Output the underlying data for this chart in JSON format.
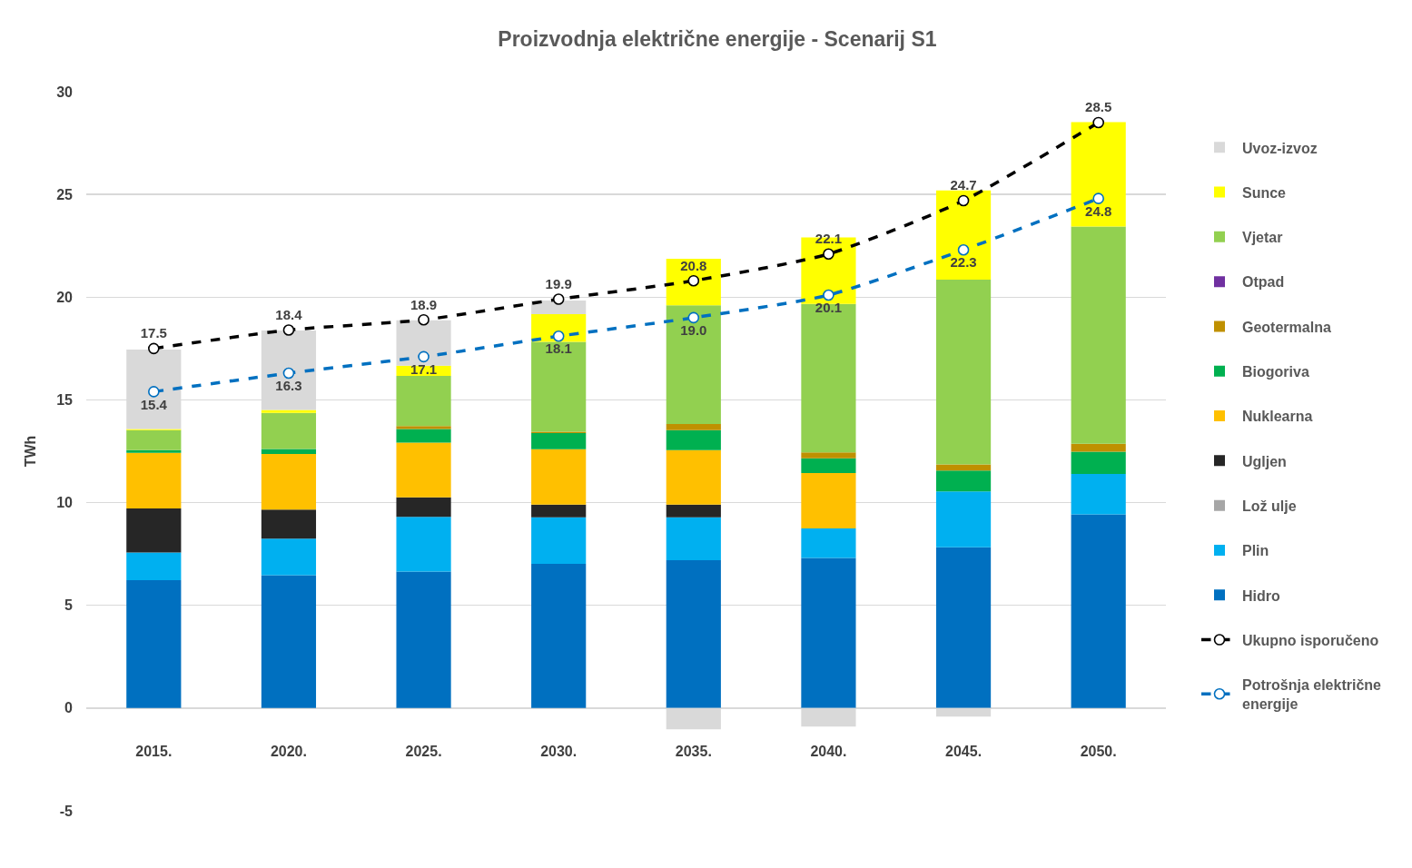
{
  "chart_data": {
    "type": "bar",
    "title": "Proizvodnja električne energije - Scenarij S1",
    "ylabel": "TWh",
    "categories": [
      "2015.",
      "2020.",
      "2025.",
      "2030.",
      "2035.",
      "2040.",
      "2045.",
      "2050."
    ],
    "stacked": true,
    "ylim": [
      -5,
      30
    ],
    "yticks": [
      -5,
      0,
      5,
      10,
      15,
      20,
      25,
      30
    ],
    "grid": "y",
    "legend": "right",
    "series": [
      {
        "name": "Hidro",
        "color": "#0070c0",
        "values": [
          6.22,
          6.47,
          6.64,
          7.02,
          7.2,
          7.31,
          7.83,
          9.43
        ]
      },
      {
        "name": "Plin",
        "color": "#00b0f0",
        "values": [
          1.35,
          1.78,
          2.67,
          2.27,
          2.09,
          1.43,
          2.71,
          1.97
        ]
      },
      {
        "name": "Lož ulje",
        "color": "#a6a6a6",
        "values": [
          0,
          0,
          0,
          0,
          0,
          0,
          0,
          0
        ]
      },
      {
        "name": "Ugljen",
        "color": "#262626",
        "values": [
          2.15,
          1.41,
          0.95,
          0.61,
          0.61,
          0,
          0,
          0
        ]
      },
      {
        "name": "Nuklearna",
        "color": "#ffc000",
        "values": [
          2.7,
          2.71,
          2.66,
          2.7,
          2.65,
          2.7,
          0,
          0
        ]
      },
      {
        "name": "Biogoriva",
        "color": "#00b050",
        "values": [
          0.13,
          0.24,
          0.66,
          0.78,
          0.98,
          0.72,
          1.02,
          1.08
        ]
      },
      {
        "name": "Geotermalna",
        "color": "#bf9000",
        "values": [
          0,
          0,
          0.15,
          0.07,
          0.3,
          0.29,
          0.3,
          0.38
        ]
      },
      {
        "name": "Otpad",
        "color": "#7030a0",
        "values": [
          0,
          0,
          0,
          0,
          0,
          0,
          0,
          0
        ]
      },
      {
        "name": "Vjetar",
        "color": "#92d050",
        "values": [
          0.98,
          1.76,
          2.44,
          4.37,
          5.77,
          7.22,
          8.99,
          10.58
        ]
      },
      {
        "name": "Sunce",
        "color": "#ffff00",
        "values": [
          0.05,
          0.14,
          0.49,
          1.35,
          2.27,
          3.24,
          4.34,
          5.08
        ]
      },
      {
        "name": "Uvoz-izvoz",
        "color": "#d9d9d9",
        "values": [
          3.87,
          3.87,
          2.22,
          0.67,
          -1.03,
          -0.9,
          -0.42,
          0
        ]
      },
      {
        "name": "Ukupno isporučeno",
        "type": "line",
        "color": "#000000",
        "line_style": "dashed",
        "marker": "circle",
        "values": [
          17.5,
          18.4,
          18.9,
          19.9,
          20.8,
          22.1,
          24.7,
          28.5
        ],
        "value_labels": [
          "17.5",
          "18.4",
          "18.9",
          "19.9",
          "20.8",
          "22.1",
          "24.7",
          "28.5"
        ]
      },
      {
        "name": "Potrošnja električne energije",
        "type": "line",
        "color": "#0070c0",
        "line_style": "dashed",
        "marker": "circle",
        "values": [
          15.4,
          16.3,
          17.1,
          18.1,
          19.0,
          20.1,
          22.3,
          24.8
        ],
        "value_labels": [
          "15.4",
          "16.3",
          "17.1",
          "18.1",
          "19.0",
          "20.1",
          "22.3",
          "24.8"
        ]
      }
    ]
  }
}
